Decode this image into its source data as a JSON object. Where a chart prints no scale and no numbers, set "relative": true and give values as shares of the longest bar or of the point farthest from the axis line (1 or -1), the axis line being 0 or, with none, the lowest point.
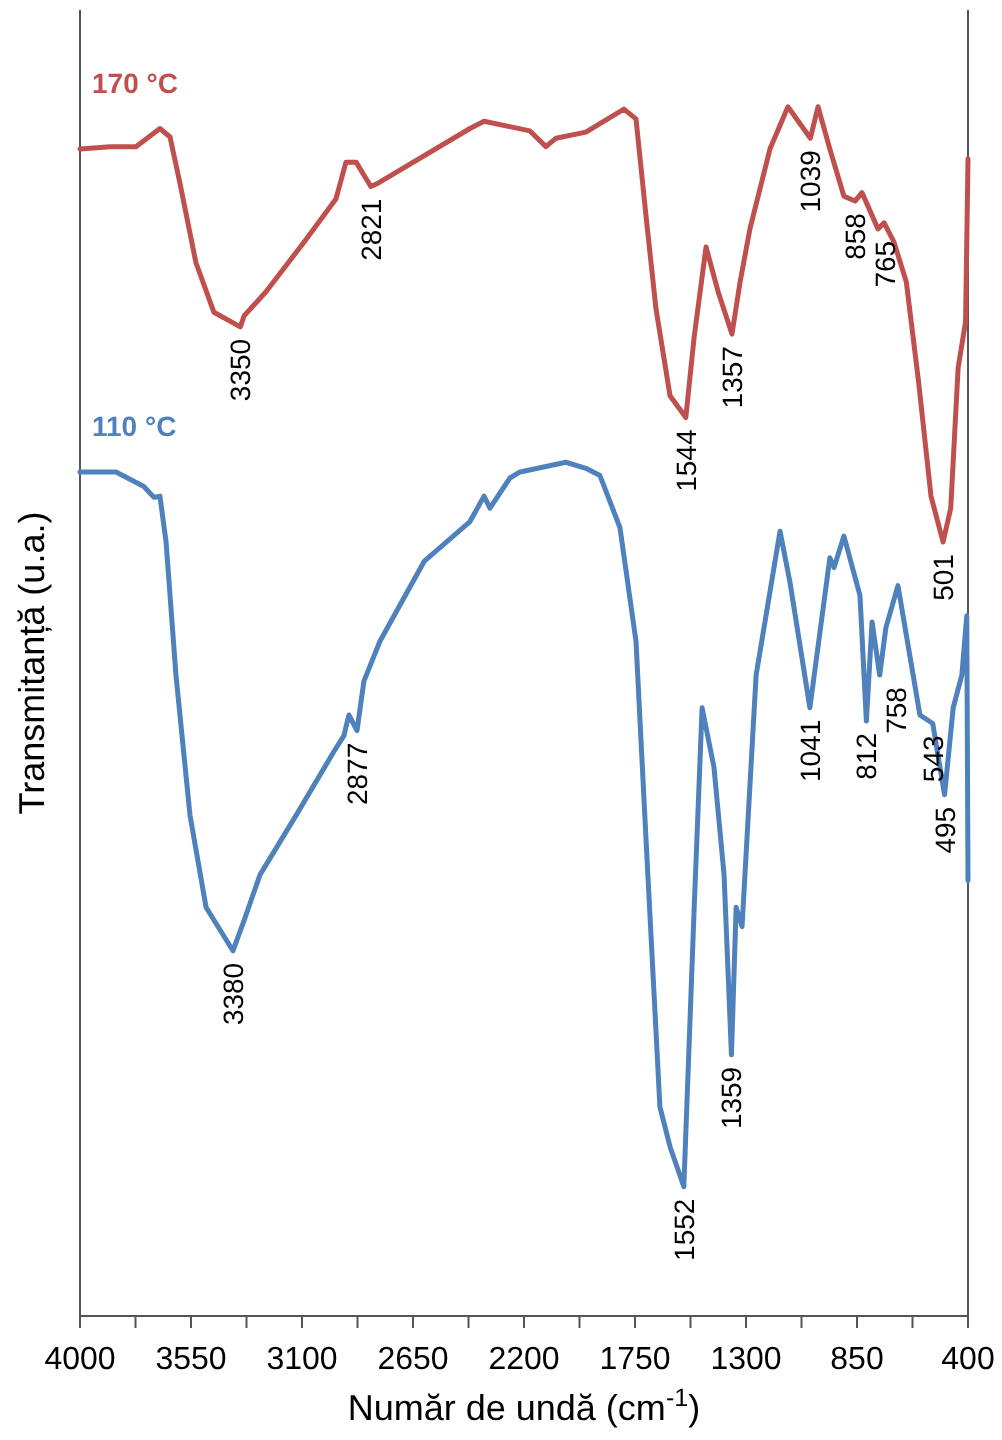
{
  "chart_data": {
    "type": "line",
    "relative": true,
    "xlabel": "Număr de undă (cm$^{-1}$)",
    "ylabel": "Transmitanță (u.a.)",
    "xlim": [
      4000,
      400
    ],
    "xticks": [
      4000,
      {
        "value": 3775,
        "label": null
      },
      3550,
      {
        "value": 3325,
        "label": null
      },
      3100,
      {
        "value": 2875,
        "label": null
      },
      2650,
      {
        "value": 2425,
        "label": null
      },
      2200,
      {
        "value": 1975,
        "label": null
      },
      1750,
      {
        "value": 1525,
        "label": null
      },
      1300,
      {
        "value": 1075,
        "label": null
      },
      850,
      {
        "value": 625,
        "label": null
      },
      400
    ],
    "grid": false,
    "marker": "none",
    "line_style": "solid",
    "series": [
      {
        "name": "170 °C",
        "color": "#c0504d",
        "x": [
          4000,
          3878,
          3773,
          3676,
          3635,
          3595,
          3530,
          3457,
          3350,
          3335,
          3246,
          3092,
          2962,
          2922,
          2880,
          2821,
          2790,
          2419,
          2362,
          2176,
          2111,
          2070,
          1949,
          1795,
          1746,
          1705,
          1665,
          1608,
          1544,
          1510,
          1462,
          1413,
          1357,
          1324,
          1284,
          1203,
          1130,
          1039,
          1008,
          960,
          903,
          858,
          830,
          765,
          740,
          700,
          650,
          600,
          550,
          501,
          470,
          440,
          410,
          405,
          400
        ],
        "values": [
          0.965,
          0.967,
          0.967,
          0.982,
          0.975,
          0.937,
          0.871,
          0.83,
          0.818,
          0.827,
          0.847,
          0.888,
          0.924,
          0.954,
          0.954,
          0.934,
          0.937,
          0.982,
          0.988,
          0.98,
          0.967,
          0.974,
          0.979,
          0.998,
          0.99,
          0.909,
          0.833,
          0.761,
          0.743,
          0.81,
          0.884,
          0.847,
          0.812,
          0.855,
          0.899,
          0.965,
          1.0,
          0.974,
          1.0,
          0.965,
          0.926,
          0.922,
          0.929,
          0.899,
          0.904,
          0.888,
          0.855,
          0.772,
          0.678,
          0.64,
          0.668,
          0.784,
          0.822,
          0.888,
          0.957
        ]
      },
      {
        "name": "110 °C",
        "color": "#4f81bd",
        "x": [
          4000,
          3854,
          3741,
          3700,
          3676,
          3651,
          3611,
          3554,
          3489,
          3380,
          3335,
          3270,
          3124,
          2970,
          2930,
          2910,
          2877,
          2849,
          2784,
          2605,
          2419,
          2362,
          2338,
          2257,
          2216,
          2030,
          1949,
          1892,
          1811,
          1746,
          1705,
          1649,
          1608,
          1552,
          1510,
          1478,
          1430,
          1389,
          1359,
          1340,
          1316,
          1259,
          1162,
          1122,
          1041,
          960,
          943,
          903,
          838,
          812,
          789,
          758,
          733,
          684,
          595,
          543,
          495,
          460,
          425,
          405,
          400
        ],
        "values": [
          0.698,
          0.698,
          0.686,
          0.677,
          0.678,
          0.64,
          0.53,
          0.414,
          0.338,
          0.302,
          0.327,
          0.365,
          0.414,
          0.467,
          0.48,
          0.497,
          0.484,
          0.525,
          0.558,
          0.624,
          0.657,
          0.678,
          0.668,
          0.693,
          0.698,
          0.706,
          0.701,
          0.695,
          0.652,
          0.558,
          0.393,
          0.173,
          0.14,
          0.107,
          0.338,
          0.503,
          0.454,
          0.365,
          0.216,
          0.338,
          0.322,
          0.53,
          0.649,
          0.607,
          0.503,
          0.627,
          0.619,
          0.645,
          0.596,
          0.492,
          0.574,
          0.53,
          0.569,
          0.604,
          0.497,
          0.49,
          0.431,
          0.503,
          0.53,
          0.579,
          0.36
        ]
      }
    ],
    "annotations": [
      {
        "text": "3350",
        "x": 3350,
        "y": 0.818
      },
      {
        "text": "2821",
        "x": 2821,
        "y": 0.934
      },
      {
        "text": "1544",
        "x": 1544,
        "y": 0.743
      },
      {
        "text": "1357",
        "x": 1357,
        "y": 0.812
      },
      {
        "text": "1039",
        "x": 1039,
        "y": 0.974
      },
      {
        "text": "858",
        "x": 858,
        "y": 0.922
      },
      {
        "text": "765",
        "x": 765,
        "y": 0.899
      },
      {
        "text": "501",
        "x": 501,
        "y": 0.64
      },
      {
        "text": "3380",
        "x": 3380,
        "y": 0.302
      },
      {
        "text": "2877",
        "x": 2877,
        "y": 0.484
      },
      {
        "text": "1552",
        "x": 1552,
        "y": 0.107
      },
      {
        "text": "1359",
        "x": 1359,
        "y": 0.216
      },
      {
        "text": "1041",
        "x": 1041,
        "y": 0.503
      },
      {
        "text": "812",
        "x": 812,
        "y": 0.492
      },
      {
        "text": "758",
        "x": 758,
        "y": 0.53
      },
      {
        "text": "543",
        "x": 543,
        "y": 0.49
      },
      {
        "text": "495",
        "x": 495,
        "y": 0.431
      }
    ]
  }
}
